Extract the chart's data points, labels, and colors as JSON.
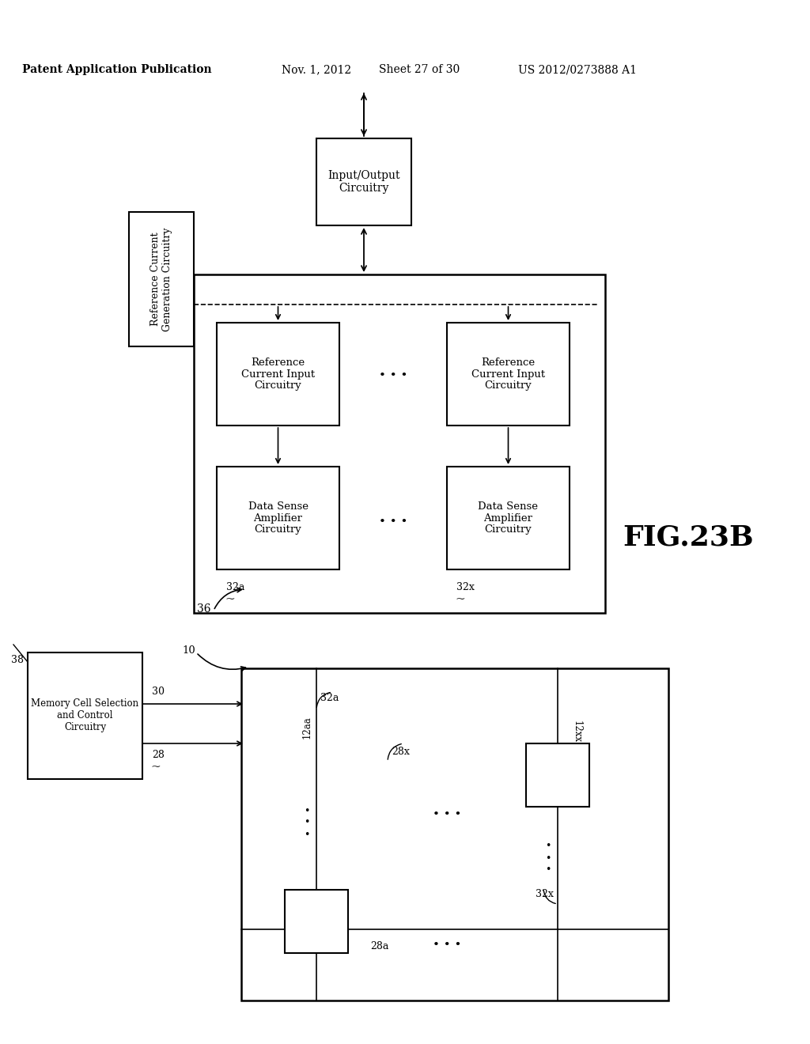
{
  "bg_color": "#ffffff",
  "header_text": "Patent Application Publication",
  "header_date": "Nov. 1, 2012",
  "header_sheet": "Sheet 27 of 30",
  "header_patent": "US 2012/0273888 A1",
  "fig_label": "FIG.23B"
}
